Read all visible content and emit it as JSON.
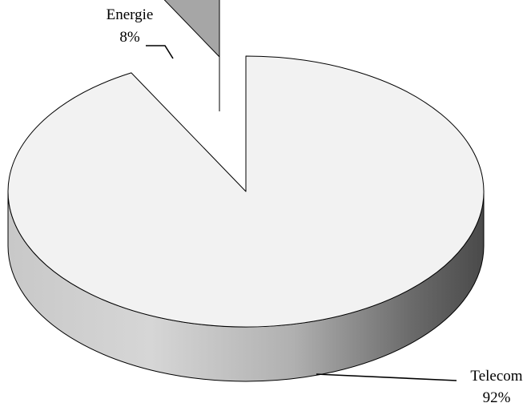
{
  "chart_data": {
    "type": "pie",
    "style": "3d-exploded",
    "title": "",
    "categories": [
      "Telecom",
      "Energie"
    ],
    "values": [
      92,
      8
    ],
    "value_suffix": "%",
    "labels": [
      {
        "name": "Telecom",
        "value_text": "92%"
      },
      {
        "name": "Energie",
        "value_text": "8%"
      }
    ],
    "colors": {
      "Telecom": "#f2f2f2",
      "Energie": "#a6a6a6",
      "side_light": "#d8d8d8",
      "side_dark": "#4a4a4a",
      "outline": "#000000"
    },
    "legend": "none",
    "exploded": "Energie"
  }
}
